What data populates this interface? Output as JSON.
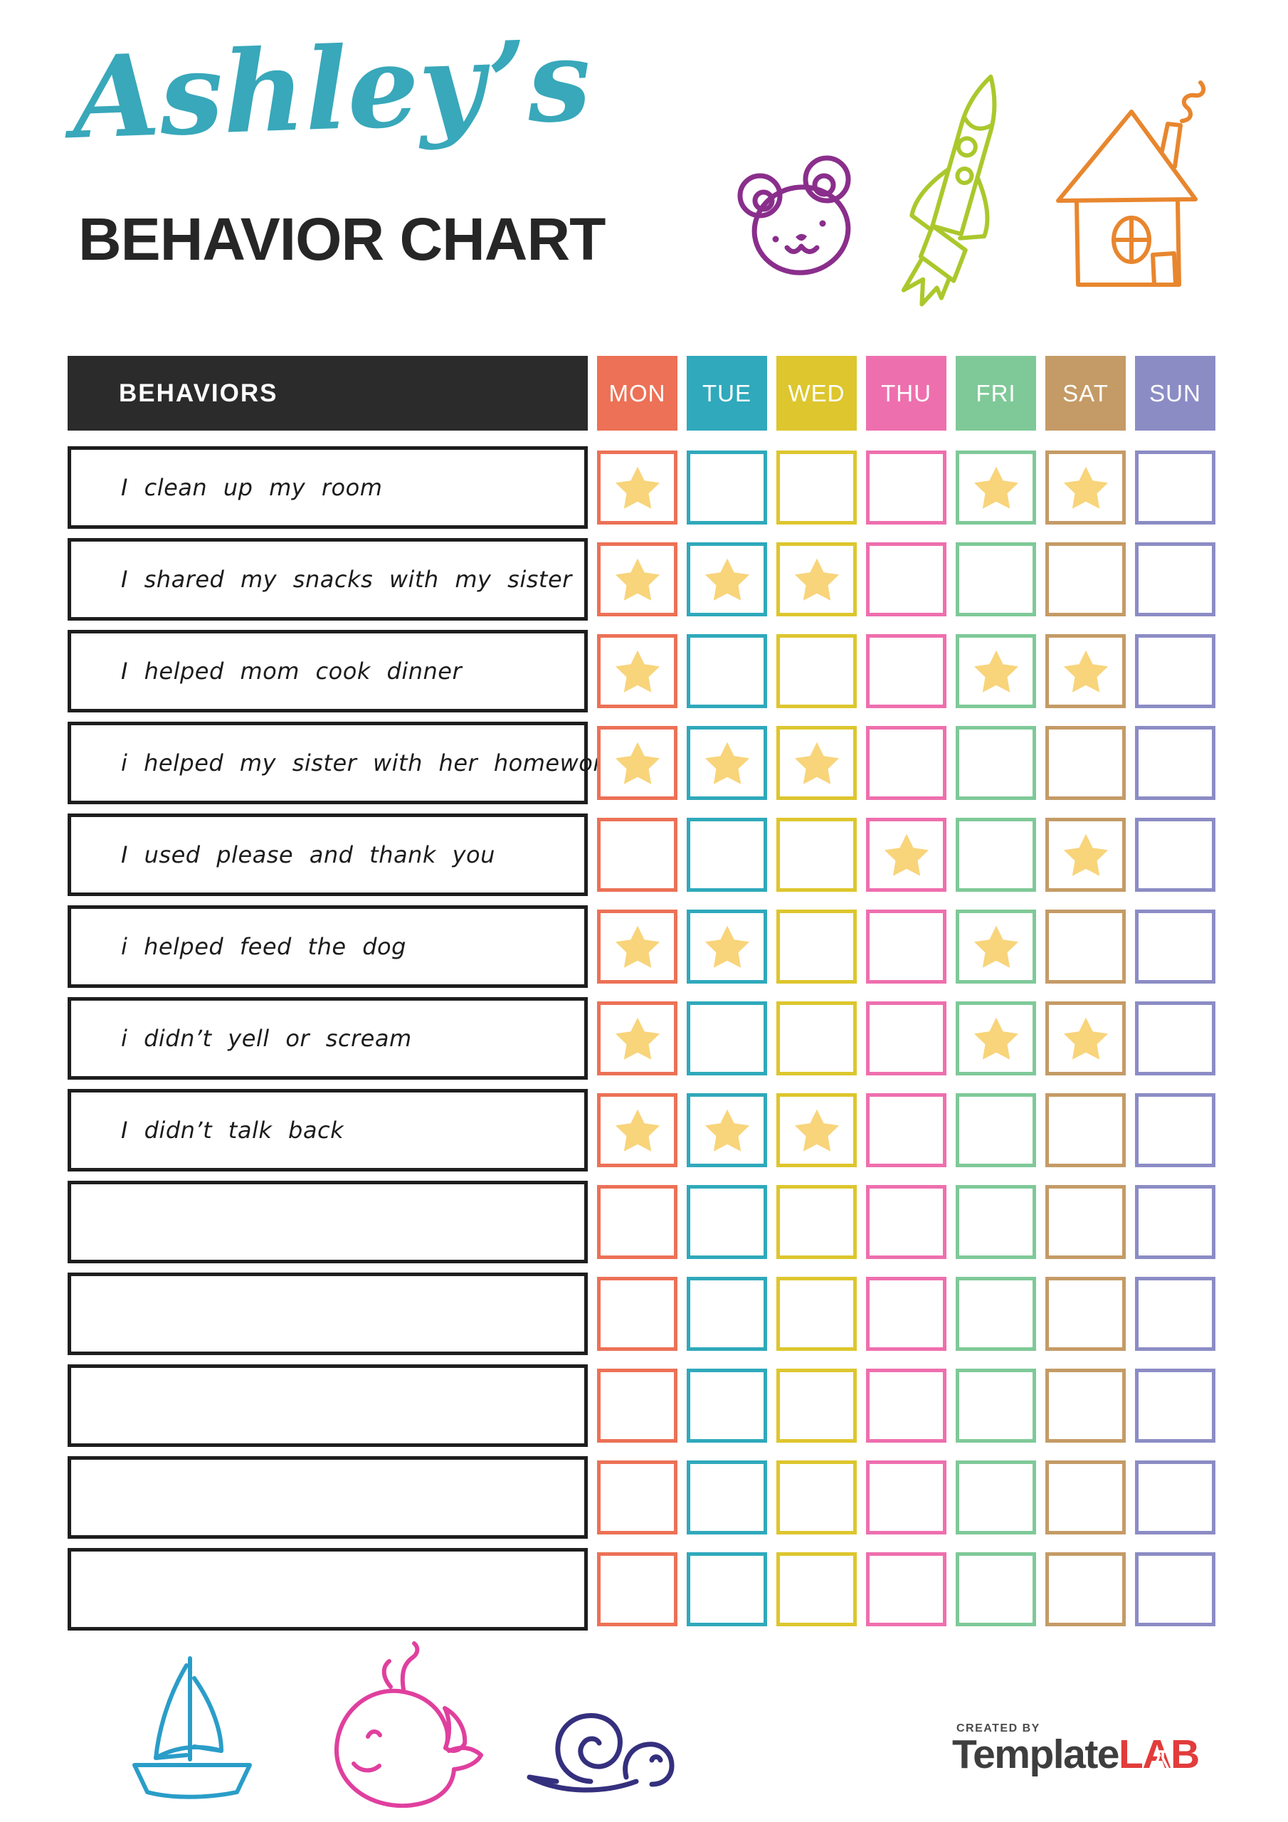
{
  "header": {
    "script_title": "Ashley’s",
    "script_title_color": "#38a8ba",
    "main_title": "BEHAVIOR CHART"
  },
  "table": {
    "behaviors_label": "BEHAVIORS",
    "header_bg": "#2b2b2b",
    "star_color": "#f8d47a",
    "days": [
      {
        "label": "MON",
        "color": "#ec7156"
      },
      {
        "label": "TUE",
        "color": "#2fa9bb"
      },
      {
        "label": "WED",
        "color": "#ddc62e"
      },
      {
        "label": "THU",
        "color": "#ee6fae"
      },
      {
        "label": "FRI",
        "color": "#7fc998"
      },
      {
        "label": "SAT",
        "color": "#c49b66"
      },
      {
        "label": "SUN",
        "color": "#8c8cc5"
      }
    ],
    "rows": [
      {
        "behavior": "I clean up my room",
        "stars": [
          "MON",
          "FRI",
          "SAT"
        ]
      },
      {
        "behavior": "I shared my snacks with my sister",
        "stars": [
          "MON",
          "TUE",
          "WED"
        ]
      },
      {
        "behavior": "I helped mom cook dinner",
        "stars": [
          "MON",
          "FRI",
          "SAT"
        ]
      },
      {
        "behavior": "i helped my sister with her homework",
        "stars": [
          "MON",
          "TUE",
          "WED"
        ]
      },
      {
        "behavior": "I used please and thank you",
        "stars": [
          "THU",
          "SAT"
        ]
      },
      {
        "behavior": "i helped feed the dog",
        "stars": [
          "MON",
          "TUE",
          "FRI"
        ]
      },
      {
        "behavior": "i didn’t yell or scream",
        "stars": [
          "MON",
          "FRI",
          "SAT"
        ]
      },
      {
        "behavior": "I didn’t talk back",
        "stars": [
          "MON",
          "TUE",
          "WED"
        ]
      },
      {
        "behavior": "",
        "stars": []
      },
      {
        "behavior": "",
        "stars": []
      },
      {
        "behavior": "",
        "stars": []
      },
      {
        "behavior": "",
        "stars": []
      },
      {
        "behavior": "",
        "stars": []
      }
    ]
  },
  "decorations": {
    "top_icons": [
      "bear-icon",
      "rocket-icon",
      "house-icon"
    ],
    "bottom_icons": [
      "sailboat-icon",
      "whale-icon",
      "snail-icon"
    ],
    "colors": {
      "bear": "#8a2e8c",
      "rocket": "#aac82c",
      "house": "#e8862e",
      "sailboat": "#2a9dc8",
      "whale": "#e03f9e",
      "snail": "#35307e"
    }
  },
  "footer": {
    "created_by": "CREATED BY",
    "logo_primary": "Template",
    "logo_accent": "LAB"
  }
}
